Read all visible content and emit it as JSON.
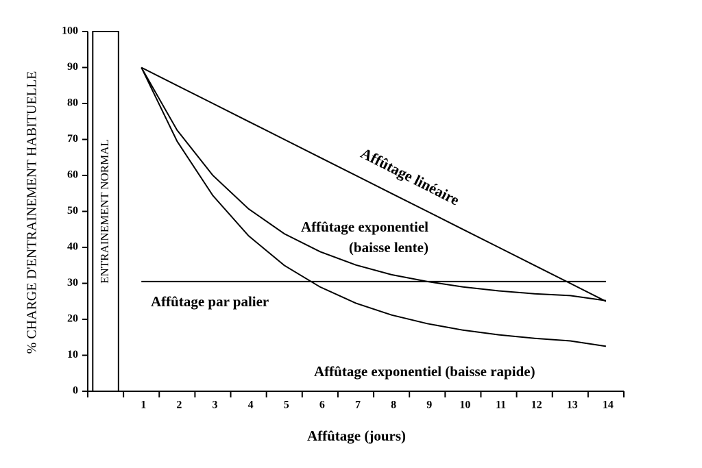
{
  "chart_data": {
    "type": "line",
    "y_label": "% CHARGE D'ENTRAINEMENT HABITUELLE",
    "x_label": "Affûtage (jours)",
    "categories": [
      null,
      "1",
      "2",
      "3",
      "4",
      "5",
      "6",
      "7",
      "8",
      "9",
      "10",
      "11",
      "12",
      "13",
      "14"
    ],
    "ylim": [
      0,
      100
    ],
    "yticks": [
      0,
      10,
      20,
      30,
      40,
      50,
      60,
      70,
      80,
      90,
      100
    ],
    "series": [
      {
        "name": "ENTRAINEMENT NORMAL",
        "type": "bar",
        "color": "#000000",
        "values": [
          100,
          null,
          null,
          null,
          null,
          null,
          null,
          null,
          null,
          null,
          null,
          null,
          null,
          null,
          null
        ]
      },
      {
        "name": "Affûtage linéaire",
        "type": "line",
        "color": "#000000",
        "values": [
          null,
          90,
          85,
          80,
          75,
          70,
          65,
          60,
          55,
          50,
          45,
          40,
          35,
          30,
          25
        ]
      },
      {
        "name": "Affûtage exponentiel (baisse lente)",
        "type": "line",
        "color": "#000000",
        "values": [
          null,
          90,
          72.6,
          60.0,
          50.7,
          43.8,
          38.8,
          35.1,
          32.4,
          30.5,
          29.0,
          27.9,
          27.1,
          26.6,
          25.2
        ]
      },
      {
        "name": "Affûtage exponentiel (baisse rapide)",
        "type": "line",
        "color": "#000000",
        "values": [
          null,
          90,
          69.5,
          54.4,
          43.2,
          35.0,
          29.0,
          24.5,
          21.2,
          18.8,
          17.0,
          15.7,
          14.7,
          14.0,
          12.5
        ]
      },
      {
        "name": "Affûtage par palier",
        "type": "line",
        "color": "#000000",
        "values": [
          null,
          30.5,
          30.5,
          30.5,
          30.5,
          30.5,
          30.5,
          30.5,
          30.5,
          30.5,
          30.5,
          30.5,
          30.5,
          30.5,
          30.5
        ]
      }
    ]
  }
}
